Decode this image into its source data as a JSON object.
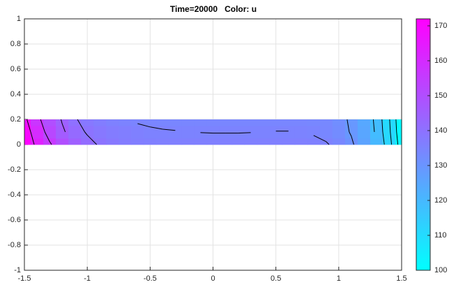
{
  "chart_data": {
    "type": "contour",
    "title": "Time=20000   Color: u",
    "x": [
      -1.5,
      -1.4,
      -1.3,
      -1.2,
      -1.1,
      -1.0,
      -0.9,
      -0.8,
      -0.7,
      -0.6,
      -0.5,
      -0.4,
      -0.3,
      -0.2,
      -0.1,
      0,
      0.1,
      0.2,
      0.3,
      0.4,
      0.5,
      0.6,
      0.7,
      0.8,
      0.9,
      1.0,
      1.1,
      1.2,
      1.3,
      1.4,
      1.5
    ],
    "y": [
      0,
      0.1,
      0.2
    ],
    "values": [
      [
        172,
        163,
        156,
        150,
        145,
        141.5,
        139.5,
        138,
        137,
        136.5,
        136.2,
        136,
        136,
        136,
        136,
        136,
        136,
        136,
        136,
        136,
        136,
        136,
        136,
        135.8,
        135.3,
        134,
        131,
        126,
        120,
        112,
        102
      ],
      [
        170,
        160,
        152,
        146,
        142,
        139.5,
        138,
        137,
        136.3,
        135.8,
        135.4,
        135.2,
        135.1,
        135,
        134.95,
        134.9,
        134.9,
        134.9,
        134.95,
        135,
        135.05,
        135.05,
        135,
        134.7,
        134,
        132.5,
        129.5,
        125,
        119,
        111,
        101
      ],
      [
        167,
        157,
        150,
        144.5,
        140.5,
        138.2,
        136.7,
        135.6,
        135,
        134.6,
        134.4,
        134.3,
        134.3,
        134.3,
        134.3,
        134.3,
        134.3,
        134.3,
        134.3,
        134.3,
        134.3,
        134.3,
        134.2,
        134,
        133.5,
        132,
        129,
        124.5,
        118.5,
        110.5,
        100.5
      ]
    ],
    "levels": [
      105,
      110,
      115,
      120,
      125,
      130,
      135,
      140,
      145,
      150,
      155,
      160,
      165,
      170
    ],
    "colormap": [
      "#00ffff",
      "#ff00ff"
    ],
    "clim": [
      100,
      172
    ],
    "cticks": [
      100,
      110,
      120,
      130,
      140,
      150,
      160,
      170
    ],
    "xlim": [
      -1.5,
      1.5
    ],
    "xticks": [
      -1.5,
      -1,
      -0.5,
      0,
      0.5,
      1,
      1.5
    ],
    "ylim": [
      -1,
      1
    ],
    "yticks": [
      -1,
      -0.8,
      -0.6,
      -0.4,
      -0.2,
      0,
      0.2,
      0.4,
      0.6,
      0.8,
      1
    ],
    "grid": true
  }
}
